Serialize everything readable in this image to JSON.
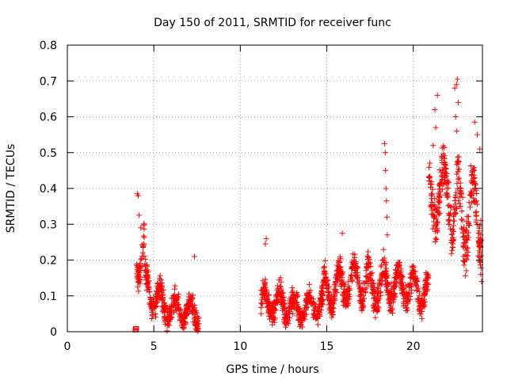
{
  "chart_data": {
    "type": "scatter",
    "title": "Day 150 of 2011, SRMTID for receiver func",
    "xlabel": "GPS time / hours",
    "ylabel": "SRMTID / TECUs",
    "xlim": [
      0,
      24
    ],
    "ylim": [
      0,
      0.8
    ],
    "xticks": [
      0,
      5,
      10,
      15,
      20
    ],
    "xtick_labels": [
      "0",
      "5",
      "10",
      "15",
      "20"
    ],
    "yticks": [
      0,
      0.1,
      0.2,
      0.3,
      0.4,
      0.5,
      0.6,
      0.7,
      0.8
    ],
    "ytick_labels": [
      "0",
      "0.1",
      "0.2",
      "0.3",
      "0.4",
      "0.5",
      "0.6",
      "0.7",
      "0.8"
    ],
    "grid": true,
    "marker": "plus",
    "color": "#ff0000",
    "outlier_points": [
      {
        "x": 3.95,
        "y": 0.0
      },
      {
        "x": 3.97,
        "y": 0.005
      }
    ],
    "segments": [
      {
        "t0": 4.0,
        "t1": 4.45,
        "base": 0.24,
        "amp": 0.08,
        "noise": 0.06,
        "trend": -0.05
      },
      {
        "t0": 4.45,
        "t1": 5.5,
        "base": 0.13,
        "amp": 0.04,
        "noise": 0.05,
        "trend": -0.05
      },
      {
        "t0": 5.5,
        "t1": 7.6,
        "base": 0.07,
        "amp": 0.03,
        "noise": 0.045,
        "trend": -0.02
      },
      {
        "t0": 11.2,
        "t1": 13.0,
        "base": 0.08,
        "amp": 0.04,
        "noise": 0.05,
        "trend": 0.0
      },
      {
        "t0": 13.0,
        "t1": 14.8,
        "base": 0.06,
        "amp": 0.03,
        "noise": 0.04,
        "trend": 0.02
      },
      {
        "t0": 14.8,
        "t1": 17.0,
        "base": 0.11,
        "amp": 0.05,
        "noise": 0.05,
        "trend": 0.04
      },
      {
        "t0": 17.0,
        "t1": 19.0,
        "base": 0.13,
        "amp": 0.05,
        "noise": 0.06,
        "trend": 0.0
      },
      {
        "t0": 19.0,
        "t1": 20.9,
        "base": 0.13,
        "amp": 0.04,
        "noise": 0.05,
        "trend": -0.02
      },
      {
        "t0": 20.9,
        "t1": 22.2,
        "base": 0.36,
        "amp": 0.08,
        "noise": 0.09,
        "trend": 0.05
      },
      {
        "t0": 22.2,
        "t1": 23.95,
        "base": 0.33,
        "amp": 0.1,
        "noise": 0.1,
        "trend": 0.0
      }
    ],
    "spikes": [
      {
        "x": 4.05,
        "y": 0.385
      },
      {
        "x": 4.1,
        "y": 0.38
      },
      {
        "x": 4.15,
        "y": 0.325
      },
      {
        "x": 4.25,
        "y": 0.29
      },
      {
        "x": 7.35,
        "y": 0.21
      },
      {
        "x": 11.5,
        "y": 0.26
      },
      {
        "x": 11.45,
        "y": 0.245
      },
      {
        "x": 15.9,
        "y": 0.275
      },
      {
        "x": 18.35,
        "y": 0.525
      },
      {
        "x": 18.38,
        "y": 0.5
      },
      {
        "x": 18.4,
        "y": 0.45
      },
      {
        "x": 18.42,
        "y": 0.4
      },
      {
        "x": 18.45,
        "y": 0.365
      },
      {
        "x": 18.48,
        "y": 0.32
      },
      {
        "x": 18.5,
        "y": 0.27
      },
      {
        "x": 21.3,
        "y": 0.57
      },
      {
        "x": 21.25,
        "y": 0.62
      },
      {
        "x": 21.4,
        "y": 0.66
      },
      {
        "x": 21.15,
        "y": 0.52
      },
      {
        "x": 22.4,
        "y": 0.68
      },
      {
        "x": 22.5,
        "y": 0.69
      },
      {
        "x": 22.55,
        "y": 0.705
      },
      {
        "x": 22.6,
        "y": 0.64
      },
      {
        "x": 22.45,
        "y": 0.6
      },
      {
        "x": 22.5,
        "y": 0.56
      },
      {
        "x": 23.55,
        "y": 0.585
      },
      {
        "x": 23.7,
        "y": 0.55
      },
      {
        "x": 23.85,
        "y": 0.51
      },
      {
        "x": 23.9,
        "y": 0.16
      },
      {
        "x": 23.95,
        "y": 0.14
      }
    ]
  }
}
